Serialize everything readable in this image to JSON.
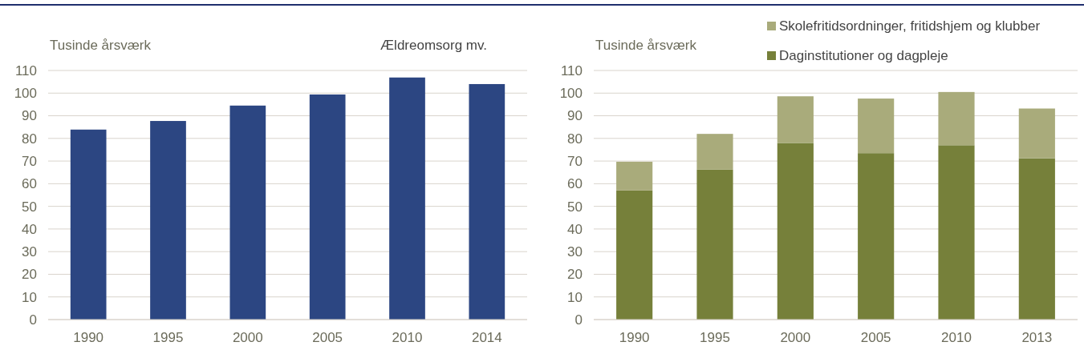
{
  "chart_data": [
    {
      "type": "bar",
      "title": "Ældreomsorg mv.",
      "ylabel": "Tusinde årsværk",
      "categories": [
        "1990",
        "1995",
        "2000",
        "2005",
        "2010",
        "2014"
      ],
      "series": [
        {
          "color": "#2c4682",
          "values": [
            83.9,
            87.7,
            94.5,
            99.4,
            106.9,
            104.0
          ]
        }
      ],
      "ylim": [
        0,
        110
      ],
      "yticks": [
        0,
        10,
        20,
        30,
        40,
        50,
        60,
        70,
        80,
        90,
        100,
        110
      ],
      "grid": "y",
      "legend": false
    },
    {
      "type": "bar",
      "ylabel": "Tusinde årsværk",
      "categories": [
        "1990",
        "1995",
        "2000",
        "2005",
        "2010",
        "2013"
      ],
      "stacked": true,
      "series": [
        {
          "name": "Daginstitutioner og dagpleje",
          "color": "#76803a",
          "values": [
            57.0,
            66.2,
            78.0,
            73.5,
            77.0,
            71.2
          ]
        },
        {
          "name": "Skolefritidsordninger, fritidshjem og klubber",
          "color": "#a9ab7b",
          "values": [
            12.7,
            15.8,
            20.6,
            24.1,
            23.5,
            22.0
          ]
        }
      ],
      "ylim": [
        0,
        110
      ],
      "yticks": [
        0,
        10,
        20,
        30,
        40,
        50,
        60,
        70,
        80,
        90,
        100,
        110
      ],
      "grid": "y",
      "legend": "top right"
    }
  ]
}
